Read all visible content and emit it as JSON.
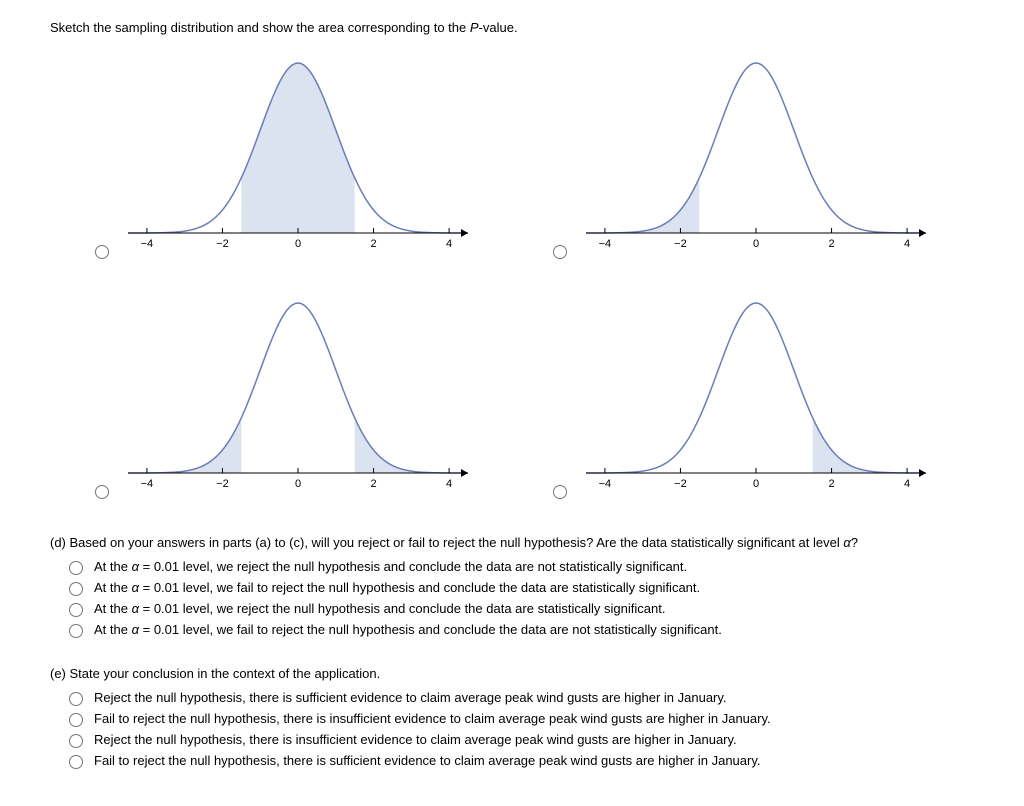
{
  "instruction": "Sketch the sampling distribution and show the area corresponding to the P-value.",
  "charts": {
    "xticks": [
      -4,
      -2,
      0,
      2,
      4
    ],
    "xlim": [
      -4.5,
      4.5
    ],
    "curve_color": "#6b7db8",
    "fill_color": "#dbe2f0",
    "axis_color": "#000000",
    "curve_width": 1.5,
    "options": [
      {
        "id": "chart1",
        "shade_from": -1.5,
        "shade_to": 1.5
      },
      {
        "id": "chart2",
        "shade_from": -4.5,
        "shade_to": -1.5
      },
      {
        "id": "chart3",
        "two_tail": true,
        "shade_cut": 1.5
      },
      {
        "id": "chart4",
        "shade_from": 1.5,
        "shade_to": 4.5
      }
    ]
  },
  "question_d": {
    "prompt_prefix": "(d) Based on your answers in parts (a) to (c), will you reject or fail to reject the null hypothesis? Are the data statistically significant at level ",
    "prompt_alpha": "α",
    "prompt_suffix": "?",
    "options": [
      "At the α = 0.01 level, we reject the null hypothesis and conclude the data are not statistically significant.",
      "At the α = 0.01 level, we fail to reject the null hypothesis and conclude the data are statistically significant.",
      "At the α = 0.01 level, we reject the null hypothesis and conclude the data are statistically significant.",
      "At the α = 0.01 level, we fail to reject the null hypothesis and conclude the data are not statistically significant."
    ]
  },
  "question_e": {
    "prompt": "(e) State your conclusion in the context of the application.",
    "options": [
      "Reject the null hypothesis, there is sufficient evidence to claim average peak wind gusts are higher in January.",
      "Fail to reject the null hypothesis, there is insufficient evidence to claim average peak wind gusts are higher in January.",
      "Reject the null hypothesis, there is insufficient evidence to claim average peak wind gusts are higher in January.",
      "Fail to reject the null hypothesis, there is sufficient evidence to claim average peak wind gusts are higher in January."
    ]
  }
}
